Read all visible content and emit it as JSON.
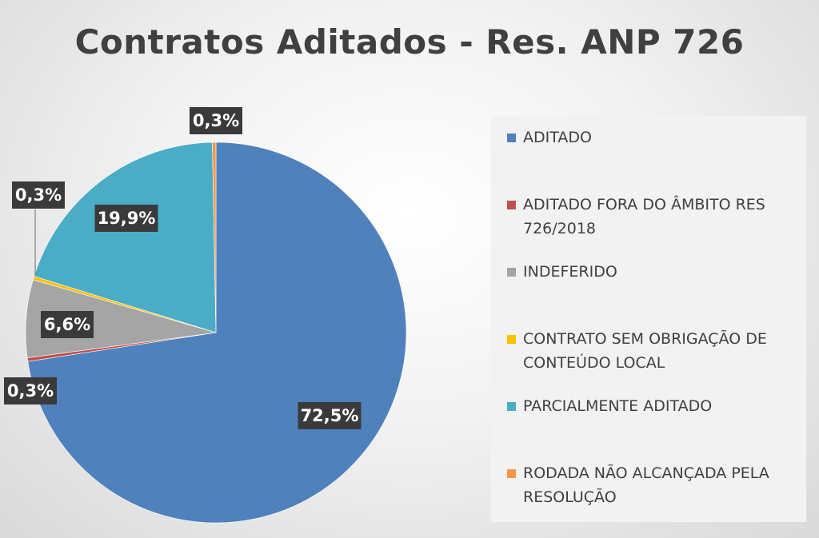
{
  "chart_data": {
    "type": "pie",
    "title": "Contratos Aditados - Res. ANP 726",
    "start_angle_deg": 0,
    "direction": "clockwise",
    "legend_position": "right",
    "slices": [
      {
        "label": "ADITADO",
        "value": 72.5,
        "display": "72,5%",
        "color": "#4f81bd"
      },
      {
        "label": "ADITADO FORA DO ÂMBITO RES 726/2018",
        "value": 0.3,
        "display": "0,3%",
        "color": "#c0504d"
      },
      {
        "label": "INDEFERIDO",
        "value": 6.6,
        "display": "6,6%",
        "color": "#a5a5a5"
      },
      {
        "label": "CONTRATO SEM OBRIGAÇÃO DE CONTEÚDO LOCAL",
        "value": 0.3,
        "display": "0,3%",
        "color": "#ffc000"
      },
      {
        "label": "PARCIALMENTE ADITADO",
        "value": 19.9,
        "display": "19,9%",
        "color": "#4bacc6"
      },
      {
        "label": "RODADA NÃO ALCANÇADA PELA RESOLUÇÃO",
        "value": 0.3,
        "display": "0,3%",
        "color": "#f79646"
      }
    ]
  }
}
